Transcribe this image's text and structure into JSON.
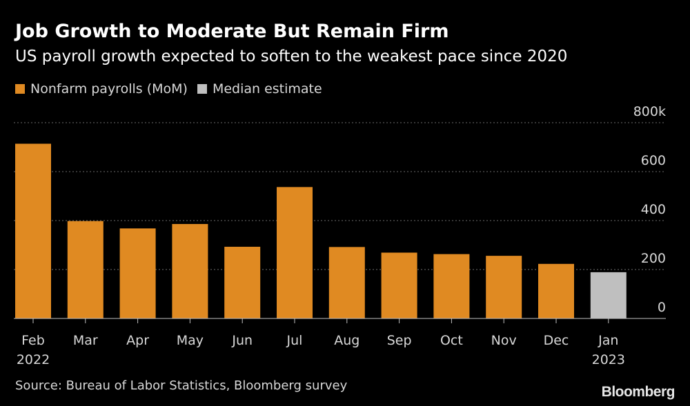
{
  "header": {
    "title": "Job Growth to Moderate But Remain Firm",
    "subtitle": "US payroll growth expected to soften to the weakest pace since 2020"
  },
  "legend": [
    {
      "label": "Nonfarm payrolls (MoM)",
      "color": "#e08a22"
    },
    {
      "label": "Median estimate",
      "color": "#bfbfbf"
    }
  ],
  "footer": {
    "source": "Source: Bureau of Labor Statistics, Bloomberg survey",
    "brand": "Bloomberg"
  },
  "chart_data": {
    "type": "bar",
    "categories": [
      "Feb",
      "Mar",
      "Apr",
      "May",
      "Jun",
      "Jul",
      "Aug",
      "Sep",
      "Oct",
      "Nov",
      "Dec",
      "Jan"
    ],
    "category_sublabels": [
      "2022",
      "",
      "",
      "",
      "",
      "",
      "",
      "",
      "",
      "",
      "",
      "2023"
    ],
    "values": [
      714,
      398,
      368,
      386,
      293,
      537,
      292,
      269,
      263,
      256,
      223,
      189
    ],
    "series_index": [
      0,
      0,
      0,
      0,
      0,
      0,
      0,
      0,
      0,
      0,
      0,
      1
    ],
    "ylim": [
      0,
      800
    ],
    "yticks": [
      0,
      200,
      400,
      600,
      800
    ],
    "ytick_labels": [
      "0",
      "200",
      "400",
      "600",
      "800k"
    ],
    "grid": true,
    "y_axis_side": "right",
    "legend_placement": "top-left"
  }
}
